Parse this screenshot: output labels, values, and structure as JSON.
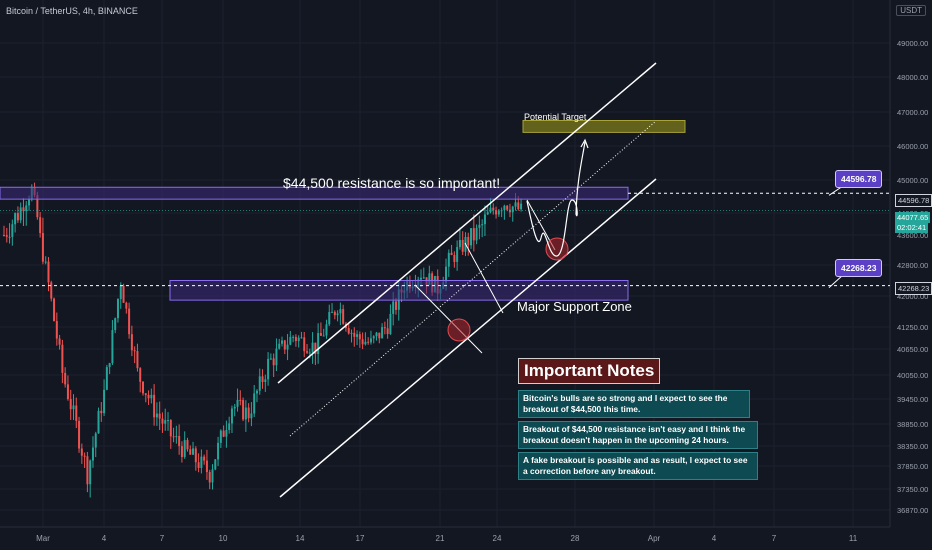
{
  "header": {
    "title": "Bitcoin / TetherUS, 4h, BINANCE",
    "currency": "USDT"
  },
  "annotations": {
    "resistance_text": "$44,500 resistance is so important!",
    "target_text": "Potential Target",
    "support_text": "Major Support Zone",
    "resistance_tag": "44596.78",
    "support_tag": "42268.23"
  },
  "notes": {
    "title": "Important Notes",
    "items": [
      "Bitcoin's bulls are so strong and I expect to see the breakout of $44,500 this time.",
      "Breakout of $44,500 resistance isn't easy and I think the breakout doesn't happen in the upcoming 24 hours.",
      "A fake breakout is possible and as result, I expect to see a correction before any breakout."
    ]
  },
  "price_labels": {
    "resistance": "44596.78",
    "last": "44077.65",
    "countdown": "02:02:41",
    "support": "42268.23"
  },
  "colors": {
    "background": "#131722",
    "up": "#26a69a",
    "down": "#ef5350",
    "zone_fill": "#3b2a78",
    "zone_border": "#8a6cf0",
    "target_fill": "#6b6a1c",
    "tag": "#5b3fc4",
    "note_bg": "#0d4a52",
    "notes_title_bg": "#5a1818"
  },
  "chart_data": {
    "type": "candlestick",
    "ylim": [
      36500,
      49500
    ],
    "y_ticks": [
      "49000.00",
      "48000.00",
      "47000.00",
      "46000.00",
      "45000.00",
      "44000.00",
      "43600.00",
      "42800.00",
      "42000.00",
      "41250.00",
      "40650.00",
      "40050.00",
      "39450.00",
      "38850.00",
      "38350.00",
      "37850.00",
      "37350.00",
      "36870.00"
    ],
    "x_ticks": [
      "Mar",
      "4",
      "7",
      "10",
      "14",
      "17",
      "21",
      "24",
      "28",
      "Apr",
      "4",
      "7",
      "11"
    ],
    "resistance_zone": [
      44420,
      44780
    ],
    "support_zone": [
      41900,
      42400
    ],
    "target_zone": [
      46400,
      46750
    ],
    "resistance_level": 44596.78,
    "support_level": 42268.23,
    "last_price": 44077.65,
    "path": [
      [
        0,
        43600
      ],
      [
        5,
        44000
      ],
      [
        10,
        44700
      ],
      [
        16,
        42300
      ],
      [
        21,
        40100
      ],
      [
        26,
        38800
      ],
      [
        30,
        37700
      ],
      [
        36,
        39600
      ],
      [
        42,
        42400
      ],
      [
        48,
        40100
      ],
      [
        54,
        39200
      ],
      [
        60,
        38600
      ],
      [
        64,
        38300
      ],
      [
        74,
        37700
      ],
      [
        82,
        39300
      ],
      [
        88,
        39100
      ],
      [
        95,
        40300
      ],
      [
        104,
        41000
      ],
      [
        112,
        40700
      ],
      [
        120,
        41800
      ],
      [
        126,
        41000
      ],
      [
        132,
        40800
      ],
      [
        138,
        41300
      ],
      [
        144,
        42300
      ],
      [
        150,
        42600
      ],
      [
        156,
        42200
      ],
      [
        160,
        42900
      ],
      [
        166,
        43400
      ],
      [
        170,
        43600
      ],
      [
        176,
        44100
      ],
      [
        180,
        44300
      ],
      [
        186,
        44077
      ]
    ]
  }
}
